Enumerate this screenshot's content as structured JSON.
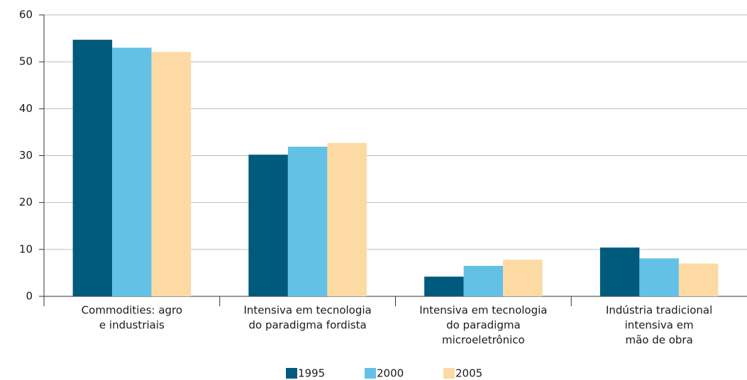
{
  "chart_data": {
    "type": "bar",
    "categories": [
      [
        "Commodities: agro",
        "e industriais"
      ],
      [
        "Intensiva em tecnologia",
        "do paradigma fordista"
      ],
      [
        "Intensiva em tecnologia",
        "do paradigma",
        "microeletrônico"
      ],
      [
        "Indústria tradicional",
        "intensiva em",
        "mão de obra"
      ]
    ],
    "series": [
      {
        "name": "1995",
        "color": "#005a7d",
        "values": [
          54.7,
          30.2,
          4.2,
          10.4
        ]
      },
      {
        "name": "2000",
        "color": "#63c1e6",
        "values": [
          53.0,
          31.9,
          6.5,
          8.1
        ]
      },
      {
        "name": "2005",
        "color": "#fdd9a3",
        "values": [
          52.1,
          32.7,
          7.8,
          7.0
        ]
      }
    ],
    "ylim": [
      0,
      60
    ],
    "yticks": [
      0,
      10,
      20,
      30,
      40,
      50,
      60
    ],
    "grid": true,
    "legend": "bottom"
  }
}
